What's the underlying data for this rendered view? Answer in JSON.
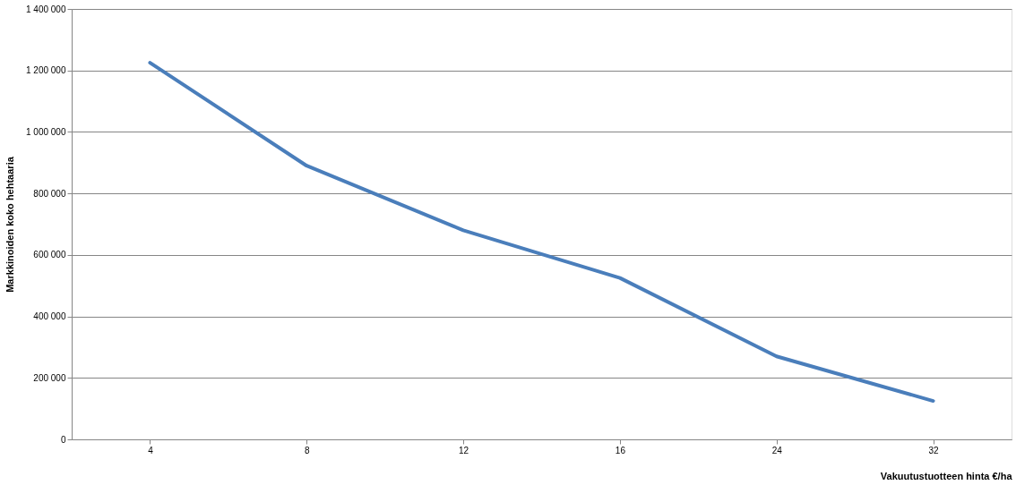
{
  "chart_data": {
    "type": "line",
    "xlabel": "Vakuutustuotteen hinta €/ha",
    "ylabel": "Markkinoiden koko hehtaaria",
    "categories": [
      "4",
      "8",
      "12",
      "16",
      "24",
      "32"
    ],
    "series": [
      {
        "color": "#4a7ebb",
        "values": [
          1225000,
          890000,
          680000,
          525000,
          270000,
          125000
        ]
      }
    ],
    "ylim": [
      0,
      1400000
    ],
    "yticks": [
      0,
      {
        "value": 200000,
        "label": "200 000"
      },
      {
        "value": 400000,
        "label": "400 000"
      },
      {
        "value": 600000,
        "label": "600 000"
      },
      {
        "value": 800000,
        "label": "800 000"
      },
      {
        "value": 1000000,
        "label": "1 000 000"
      },
      {
        "value": 1200000,
        "label": "1 200 000"
      },
      {
        "value": 1400000,
        "label": "1 400 000"
      }
    ],
    "grid": "y",
    "legend": false,
    "marker": "none",
    "line_style": "solid"
  }
}
